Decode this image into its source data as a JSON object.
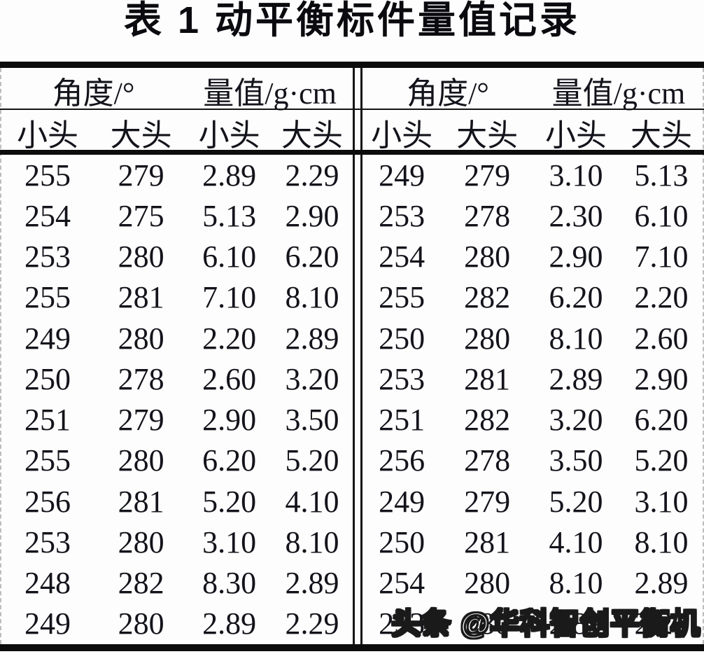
{
  "title": "表 1 动平衡标件量值记录",
  "watermark": "头条 @华科智创平衡机",
  "header": {
    "angle_label": "角度/°",
    "value_label": "量值/g·cm",
    "sub": [
      "小头",
      "大头",
      "小头",
      "大头"
    ]
  },
  "chart_data": {
    "type": "table",
    "title": "表 1 动平衡标件量值记录",
    "columns": [
      "角度/° 小头",
      "角度/° 大头",
      "量值/g·cm 小头",
      "量值/g·cm 大头"
    ],
    "left_rows": [
      [
        "255",
        "279",
        "2.89",
        "2.29"
      ],
      [
        "254",
        "275",
        "5.13",
        "2.90"
      ],
      [
        "253",
        "280",
        "6.10",
        "6.20"
      ],
      [
        "255",
        "281",
        "7.10",
        "8.10"
      ],
      [
        "249",
        "280",
        "2.20",
        "2.89"
      ],
      [
        "250",
        "278",
        "2.60",
        "3.20"
      ],
      [
        "251",
        "279",
        "2.90",
        "3.50"
      ],
      [
        "255",
        "280",
        "6.20",
        "5.20"
      ],
      [
        "256",
        "281",
        "5.20",
        "4.10"
      ],
      [
        "253",
        "280",
        "3.10",
        "8.10"
      ],
      [
        "248",
        "282",
        "8.30",
        "2.89"
      ],
      [
        "249",
        "280",
        "2.89",
        "2.29"
      ]
    ],
    "right_rows": [
      [
        "249",
        "279",
        "3.10",
        "5.13"
      ],
      [
        "253",
        "278",
        "2.30",
        "6.10"
      ],
      [
        "254",
        "280",
        "2.90",
        "7.10"
      ],
      [
        "255",
        "282",
        "6.20",
        "2.20"
      ],
      [
        "250",
        "280",
        "8.10",
        "2.60"
      ],
      [
        "253",
        "281",
        "2.89",
        "2.90"
      ],
      [
        "251",
        "282",
        "3.20",
        "6.20"
      ],
      [
        "256",
        "278",
        "3.50",
        "5.20"
      ],
      [
        "249",
        "279",
        "5.20",
        "3.10"
      ],
      [
        "250",
        "281",
        "4.10",
        "8.10"
      ],
      [
        "254",
        "280",
        "8.10",
        "2.89"
      ],
      [
        "253",
        "280",
        "2.89",
        "2.29"
      ]
    ]
  },
  "colors": {
    "text": "#13131b",
    "rule": "#0c0c0c",
    "dashed_edge": "#bdbdbd",
    "background": "#fdfdfd",
    "watermark_fill": "#ffffff",
    "watermark_stroke": "#1a1a1a"
  }
}
